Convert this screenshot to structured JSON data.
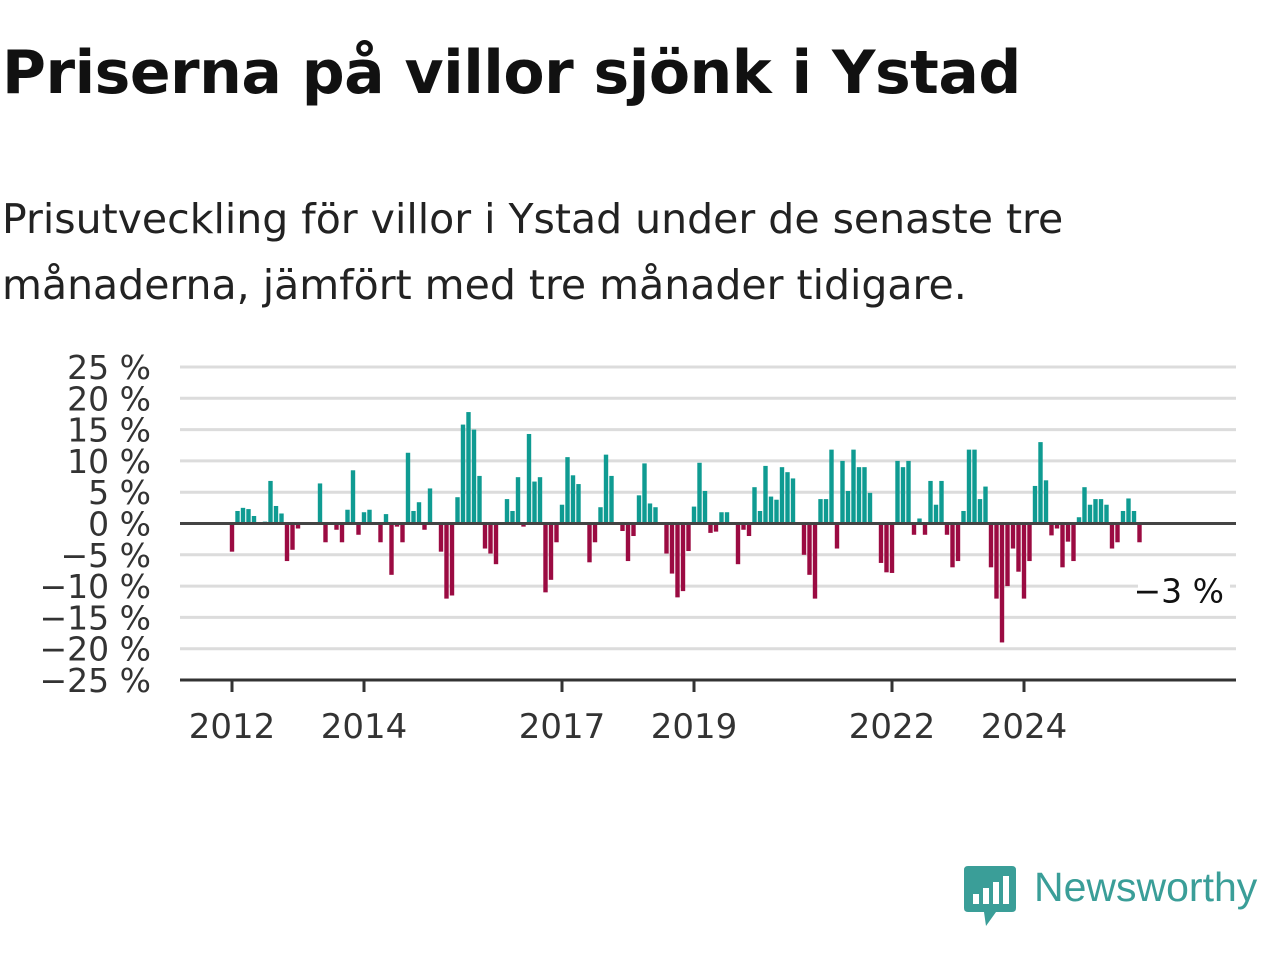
{
  "header": {
    "title": "Priserna på villor sjönk i Ystad",
    "subtitle": "Prisutveckling för villor i Ystad under de senaste tre månaderna, jämfört med tre månader tidigare."
  },
  "chart_data": {
    "type": "bar",
    "x_unit": "month",
    "start": "2012-01",
    "ylim": [
      -25,
      25
    ],
    "yticks": [
      25,
      20,
      15,
      10,
      5,
      0,
      -5,
      -10,
      -15,
      -20,
      -25
    ],
    "ytick_labels": [
      "25 %",
      "20 %",
      "15 %",
      "10 %",
      "5 %",
      "0 %",
      "−5 %",
      "−10 %",
      "−15 %",
      "−20 %",
      "−25 %"
    ],
    "xticks": [
      {
        "label": "2012",
        "date": "2012-01"
      },
      {
        "label": "2014",
        "date": "2014-01"
      },
      {
        "label": "2017",
        "date": "2017-01"
      },
      {
        "label": "2019",
        "date": "2019-01"
      },
      {
        "label": "2022",
        "date": "2022-01"
      },
      {
        "label": "2024",
        "date": "2024-01"
      }
    ],
    "grid": true,
    "positive_color": "#0f9b92",
    "negative_color": "#9b0b42",
    "last_value_label": "−3 %",
    "values": [
      -4.5,
      2,
      2.5,
      2.3,
      1.2,
      0,
      0.3,
      6.8,
      2.8,
      1.6,
      -6,
      -4.2,
      -0.8,
      0,
      0,
      0,
      6.4,
      -3,
      0,
      -1,
      -3,
      2.2,
      8.5,
      -1.8,
      1.8,
      2.2,
      0,
      -3,
      1.5,
      -8.2,
      -0.5,
      -3,
      11.3,
      2,
      3.4,
      -1,
      5.6,
      0,
      -4.5,
      -12,
      -11.5,
      4.2,
      15.8,
      17.8,
      15,
      7.6,
      -4,
      -4.8,
      -6.5,
      0,
      3.9,
      2,
      7.4,
      -0.5,
      14.3,
      6.7,
      7.4,
      -11,
      -9,
      -3,
      3,
      10.6,
      7.7,
      6.3,
      0,
      -6.2,
      -3,
      2.6,
      11,
      7.6,
      0,
      -1.2,
      -6,
      -2,
      4.5,
      9.6,
      3.2,
      2.6,
      0,
      -4.8,
      -8,
      -11.8,
      -10.8,
      -4.4,
      2.7,
      9.7,
      5.2,
      -1.5,
      -1.3,
      1.8,
      1.8,
      0,
      -6.5,
      -1,
      -2,
      5.8,
      2,
      9.2,
      4.3,
      3.8,
      9,
      8.2,
      7.2,
      0,
      -5,
      -8.2,
      -12,
      3.9,
      3.9,
      11.8,
      -4,
      10,
      5.2,
      11.8,
      9,
      9,
      4.9,
      0,
      -6.3,
      -7.8,
      -7.9,
      10,
      9,
      10,
      -1.8,
      0.8,
      -1.8,
      6.8,
      3,
      6.8,
      -1.8,
      -7,
      -6,
      2,
      11.8,
      11.8,
      3.9,
      5.9,
      -7,
      -12,
      -19,
      -10,
      -4,
      -7.7,
      -12,
      -6,
      6,
      13,
      6.9,
      -1.9,
      -0.8,
      -7,
      -2.9,
      -6,
      1,
      5.8,
      3,
      3.9,
      3.9,
      3,
      -4,
      -3,
      2,
      4,
      2,
      -3
    ]
  },
  "brand": {
    "name": "Newsworthy",
    "logo_icon": "bar-chart-speech-bubble-icon",
    "color": "#3a9e98"
  }
}
